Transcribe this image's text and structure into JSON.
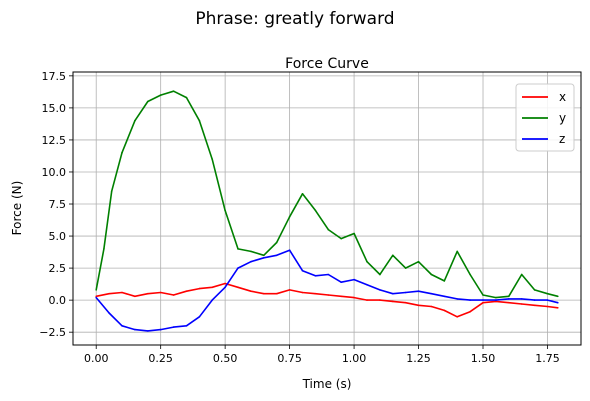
{
  "figure": {
    "suptitle": "Phrase: greatly forward"
  },
  "chart_data": {
    "type": "line",
    "title": "Force Curve",
    "xlabel": "Time (s)",
    "ylabel": "Force (N)",
    "xlim": [
      -0.09,
      1.88
    ],
    "ylim": [
      -3.5,
      17.8
    ],
    "x_ticks": [
      0.0,
      0.25,
      0.5,
      0.75,
      1.0,
      1.25,
      1.5,
      1.75
    ],
    "x_tick_labels": [
      "0.00",
      "0.25",
      "0.50",
      "0.75",
      "1.00",
      "1.25",
      "1.50",
      "1.75"
    ],
    "y_ticks": [
      -2.5,
      0.0,
      2.5,
      5.0,
      7.5,
      10.0,
      12.5,
      15.0,
      17.5
    ],
    "y_tick_labels": [
      "−2.5",
      "0.0",
      "2.5",
      "5.0",
      "7.5",
      "10.0",
      "12.5",
      "15.0",
      "17.5"
    ],
    "grid": true,
    "legend_position": "top-right",
    "series": [
      {
        "name": "x",
        "color": "#ff0000",
        "x": [
          0.0,
          0.05,
          0.1,
          0.15,
          0.2,
          0.25,
          0.3,
          0.35,
          0.4,
          0.45,
          0.5,
          0.55,
          0.6,
          0.65,
          0.7,
          0.75,
          0.8,
          0.85,
          0.9,
          0.95,
          1.0,
          1.05,
          1.1,
          1.15,
          1.2,
          1.25,
          1.3,
          1.35,
          1.4,
          1.45,
          1.5,
          1.55,
          1.6,
          1.65,
          1.7,
          1.75,
          1.79
        ],
        "values": [
          0.3,
          0.5,
          0.6,
          0.3,
          0.5,
          0.6,
          0.4,
          0.7,
          0.9,
          1.0,
          1.3,
          1.0,
          0.7,
          0.5,
          0.5,
          0.8,
          0.6,
          0.5,
          0.4,
          0.3,
          0.2,
          0.0,
          0.0,
          -0.1,
          -0.2,
          -0.4,
          -0.5,
          -0.8,
          -1.3,
          -0.9,
          -0.2,
          -0.1,
          -0.2,
          -0.3,
          -0.4,
          -0.5,
          -0.6
        ]
      },
      {
        "name": "y",
        "color": "#008000",
        "x": [
          0.0,
          0.03,
          0.06,
          0.1,
          0.15,
          0.2,
          0.25,
          0.3,
          0.35,
          0.4,
          0.45,
          0.5,
          0.55,
          0.6,
          0.65,
          0.7,
          0.75,
          0.8,
          0.85,
          0.9,
          0.95,
          1.0,
          1.05,
          1.1,
          1.15,
          1.2,
          1.25,
          1.3,
          1.35,
          1.4,
          1.45,
          1.5,
          1.55,
          1.6,
          1.65,
          1.7,
          1.75,
          1.79
        ],
        "values": [
          0.8,
          4.0,
          8.5,
          11.5,
          14.0,
          15.5,
          16.0,
          16.3,
          15.8,
          14.0,
          11.0,
          7.0,
          4.0,
          3.8,
          3.5,
          4.5,
          6.5,
          8.3,
          7.0,
          5.5,
          4.8,
          5.2,
          3.0,
          2.0,
          3.5,
          2.5,
          3.0,
          2.0,
          1.5,
          3.8,
          2.0,
          0.4,
          0.2,
          0.3,
          2.0,
          0.8,
          0.5,
          0.3
        ]
      },
      {
        "name": "z",
        "color": "#0000ff",
        "x": [
          0.0,
          0.05,
          0.1,
          0.15,
          0.2,
          0.25,
          0.3,
          0.35,
          0.4,
          0.45,
          0.5,
          0.55,
          0.6,
          0.65,
          0.7,
          0.75,
          0.8,
          0.85,
          0.9,
          0.95,
          1.0,
          1.05,
          1.1,
          1.15,
          1.2,
          1.25,
          1.3,
          1.35,
          1.4,
          1.45,
          1.5,
          1.55,
          1.6,
          1.65,
          1.7,
          1.75,
          1.79
        ],
        "values": [
          0.2,
          -1.0,
          -2.0,
          -2.3,
          -2.4,
          -2.3,
          -2.1,
          -2.0,
          -1.3,
          0.0,
          1.0,
          2.5,
          3.0,
          3.3,
          3.5,
          3.9,
          2.3,
          1.9,
          2.0,
          1.4,
          1.6,
          1.2,
          0.8,
          0.5,
          0.6,
          0.7,
          0.5,
          0.3,
          0.1,
          0.0,
          0.0,
          0.0,
          0.1,
          0.1,
          0.0,
          0.0,
          -0.2
        ]
      }
    ]
  }
}
